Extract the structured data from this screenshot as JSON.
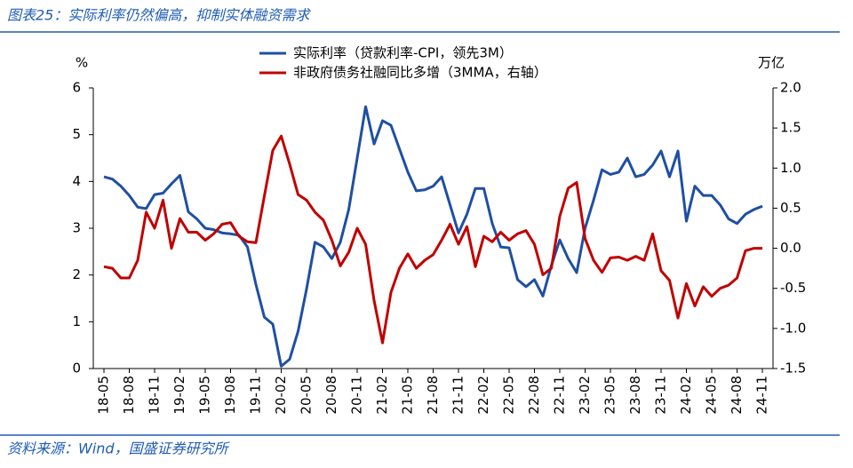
{
  "chart_data": {
    "type": "line",
    "title": "图表25：实际利率仍然偏高，抑制实体融资需求",
    "source": "资料来源：Wind，国盛证券研究所",
    "ylabel": "%",
    "y2label": "万亿",
    "categories": [
      "18-05",
      null,
      null,
      "18-08",
      null,
      null,
      "18-11",
      null,
      null,
      "19-02",
      null,
      null,
      "19-05",
      null,
      null,
      "19-08",
      null,
      null,
      "19-11",
      null,
      null,
      "20-02",
      null,
      null,
      "20-05",
      null,
      null,
      "20-08",
      null,
      null,
      "20-11",
      null,
      null,
      "21-02",
      null,
      null,
      "21-05",
      null,
      null,
      "21-08",
      null,
      null,
      "21-11",
      null,
      null,
      "22-02",
      null,
      null,
      "22-05",
      null,
      null,
      "22-08",
      null,
      null,
      "22-11",
      null,
      null,
      "23-02",
      null,
      null,
      "23-05",
      null,
      null,
      "23-08",
      null,
      null,
      "23-11",
      null,
      null,
      "24-02",
      null,
      null,
      "24-05",
      null,
      null,
      "24-08",
      null,
      null,
      "24-11"
    ],
    "series": [
      {
        "name": "实际利率（贷款利率-CPI，领先3M）",
        "color": "#1f4fa3",
        "values": [
          4.1,
          4.05,
          3.9,
          3.7,
          3.45,
          3.42,
          3.72,
          3.75,
          3.95,
          4.13,
          3.35,
          3.2,
          3.0,
          2.97,
          2.9,
          2.88,
          2.85,
          2.6,
          1.8,
          1.1,
          0.95,
          0.05,
          0.2,
          0.8,
          1.7,
          2.7,
          2.6,
          2.35,
          2.7,
          3.4,
          4.5,
          5.6,
          4.8,
          5.3,
          5.2,
          4.7,
          4.2,
          3.8,
          3.82,
          3.9,
          4.1,
          3.5,
          2.9,
          3.3,
          3.85,
          3.85,
          3.1,
          2.6,
          2.58,
          1.9,
          1.75,
          1.9,
          1.55,
          2.2,
          2.75,
          2.35,
          2.05,
          3.0,
          3.6,
          4.25,
          4.15,
          4.2,
          4.5,
          4.1,
          4.15,
          4.35,
          4.65,
          4.1,
          4.65,
          3.15,
          3.9,
          3.7,
          3.7,
          3.5,
          3.2,
          3.1,
          3.3,
          3.4,
          3.47
        ]
      },
      {
        "name": "非政府债务社融同比多增（3MMA，右轴）",
        "color": "#c00000",
        "axis": "y2",
        "values": [
          -0.23,
          -0.25,
          -0.37,
          -0.37,
          -0.15,
          0.45,
          0.25,
          0.6,
          0.0,
          0.37,
          0.2,
          0.2,
          0.1,
          0.18,
          0.3,
          0.32,
          0.15,
          0.08,
          0.07,
          0.65,
          1.22,
          1.4,
          1.05,
          0.67,
          0.6,
          0.45,
          0.35,
          0.1,
          -0.22,
          -0.05,
          0.25,
          0.05,
          -0.65,
          -1.18,
          -0.55,
          -0.25,
          -0.07,
          -0.25,
          -0.15,
          -0.08,
          0.1,
          0.3,
          0.05,
          0.27,
          -0.23,
          0.15,
          0.08,
          0.2,
          0.1,
          0.18,
          0.22,
          0.05,
          -0.33,
          -0.25,
          0.4,
          0.75,
          0.82,
          0.12,
          -0.15,
          -0.3,
          -0.12,
          -0.11,
          -0.15,
          -0.1,
          -0.15,
          0.18,
          -0.28,
          -0.4,
          -0.87,
          -0.44,
          -0.72,
          -0.48,
          -0.6,
          -0.5,
          -0.46,
          -0.37,
          -0.03,
          0.0,
          0.0
        ]
      }
    ],
    "ylim": [
      0,
      6
    ],
    "yticks": [
      0,
      1,
      2,
      3,
      4,
      5,
      6
    ],
    "y2lim": [
      -1.5,
      2
    ],
    "y2ticks": [
      -1.5,
      {
        "value": -1,
        "label": "-1.0"
      },
      -0.5,
      {
        "value": 0,
        "label": "0.0"
      },
      0.5,
      {
        "value": 1,
        "label": "1.0"
      },
      1.5,
      {
        "value": 2,
        "label": "2.0"
      }
    ],
    "legend": "top"
  }
}
